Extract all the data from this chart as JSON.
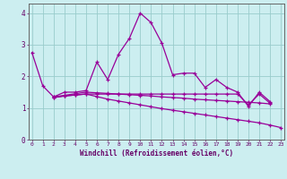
{
  "xlabel": "Windchill (Refroidissement éolien,°C)",
  "background_color": "#cceef0",
  "grid_color": "#99cccc",
  "line_color": "#990099",
  "x": [
    0,
    1,
    2,
    3,
    4,
    5,
    6,
    7,
    8,
    9,
    10,
    11,
    12,
    13,
    14,
    15,
    16,
    17,
    18,
    19,
    20,
    21,
    22,
    23
  ],
  "series1": [
    2.75,
    1.7,
    1.35,
    1.5,
    1.5,
    1.55,
    2.45,
    1.9,
    2.7,
    3.2,
    4.0,
    3.7,
    3.05,
    2.05,
    2.1,
    2.1,
    1.65,
    1.9,
    1.65,
    1.5,
    1.05,
    1.5,
    1.2,
    null
  ],
  "series2": [
    null,
    null,
    1.35,
    1.4,
    1.45,
    1.5,
    1.48,
    1.46,
    1.44,
    1.42,
    1.4,
    1.38,
    1.35,
    1.33,
    1.31,
    1.28,
    1.26,
    1.24,
    1.22,
    1.2,
    1.18,
    1.16,
    1.13,
    null
  ],
  "series3": [
    null,
    null,
    1.33,
    1.38,
    1.41,
    1.44,
    1.36,
    1.28,
    1.22,
    1.16,
    1.1,
    1.04,
    0.98,
    0.93,
    0.88,
    0.83,
    0.78,
    0.73,
    0.68,
    0.63,
    0.58,
    0.53,
    0.46,
    0.38
  ],
  "series4": [
    null,
    null,
    1.33,
    1.38,
    1.41,
    1.44,
    1.44,
    1.44,
    1.44,
    1.44,
    1.44,
    1.44,
    1.44,
    1.44,
    1.44,
    1.44,
    1.44,
    1.44,
    1.44,
    1.44,
    1.1,
    1.44,
    1.15,
    null
  ],
  "ylim": [
    0,
    4.3
  ],
  "xlim": [
    -0.3,
    23.3
  ],
  "yticks": [
    0,
    1,
    2,
    3,
    4
  ],
  "xticks": [
    0,
    1,
    2,
    3,
    4,
    5,
    6,
    7,
    8,
    9,
    10,
    11,
    12,
    13,
    14,
    15,
    16,
    17,
    18,
    19,
    20,
    21,
    22,
    23
  ]
}
